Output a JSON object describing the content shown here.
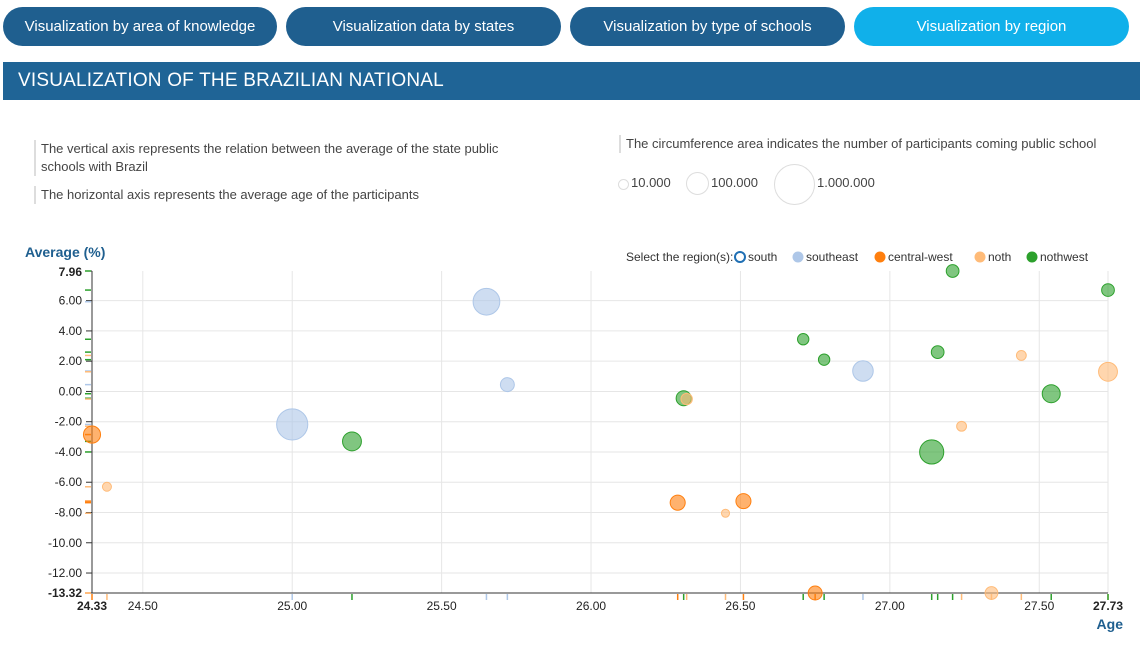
{
  "tabs": [
    {
      "label": "Visualization by area of knowledge",
      "active": false
    },
    {
      "label": "Visualization data by states",
      "active": false
    },
    {
      "label": "Visualization by type of schools",
      "active": false
    },
    {
      "label": "Visualization by region",
      "active": true
    }
  ],
  "banner": {
    "title": "VISUALIZATION OF THE BRAZILIAN NATIONAL"
  },
  "notes": {
    "vertical": "The vertical axis represents the relation between the average of the state public schools with Brazil",
    "horizontal": "The horizontal axis represents the average age of the participants",
    "circumference": "The circumference area indicates the number of participants coming public school"
  },
  "size_legend": [
    "10.000",
    "100.000",
    "1.000.000"
  ],
  "region_selector": {
    "label": "Select the region(s):",
    "regions": [
      {
        "name": "south",
        "color": "#1f6fb4",
        "selected": false
      },
      {
        "name": "southeast",
        "color": "#aec7e8",
        "selected": true
      },
      {
        "name": "central-west",
        "color": "#ff7f0e",
        "selected": true
      },
      {
        "name": "noth",
        "color": "#ffbb78",
        "selected": true
      },
      {
        "name": "nothwest",
        "color": "#2ca02c",
        "selected": true
      }
    ]
  },
  "chart_data": {
    "type": "scatter",
    "ylabel": "Average (%)",
    "xlabel": "Age",
    "xlim": [
      24.33,
      27.73
    ],
    "ylim": [
      -13.32,
      7.96
    ],
    "x_ticks": [
      "24.50",
      "25.00",
      "25.50",
      "26.00",
      "26.50",
      "27.00",
      "27.50"
    ],
    "x_min_label": "24.33",
    "x_max_label": "27.73",
    "y_ticks": [
      "6.00",
      "4.00",
      "2.00",
      "0.00",
      "-2.00",
      "-4.00",
      "-6.00",
      "-8.00",
      "-10.00",
      "-12.00"
    ],
    "y_max_label": "7.96",
    "y_min_label": "-13.32",
    "colors": {
      "southeast": "#aec7e8",
      "central-west": "#ff7f0e",
      "noth": "#ffbb78",
      "nothwest": "#2ca02c"
    },
    "points": [
      {
        "region": "southeast",
        "x": 25.65,
        "y": 5.93,
        "participants": 220000
      },
      {
        "region": "southeast",
        "x": 25.72,
        "y": 0.45,
        "participants": 60000
      },
      {
        "region": "southeast",
        "x": 25.0,
        "y": -2.18,
        "participants": 300000
      },
      {
        "region": "southeast",
        "x": 26.91,
        "y": 1.35,
        "participants": 130000
      },
      {
        "region": "central-west",
        "x": 24.33,
        "y": -2.85,
        "participants": 90000
      },
      {
        "region": "central-west",
        "x": 26.29,
        "y": -7.35,
        "participants": 70000
      },
      {
        "region": "central-west",
        "x": 26.51,
        "y": -7.25,
        "participants": 70000
      },
      {
        "region": "central-west",
        "x": 26.75,
        "y": -13.32,
        "participants": 60000
      },
      {
        "region": "noth",
        "x": 24.38,
        "y": -6.3,
        "participants": 25000
      },
      {
        "region": "noth",
        "x": 26.32,
        "y": -0.5,
        "participants": 40000
      },
      {
        "region": "noth",
        "x": 26.45,
        "y": -8.05,
        "participants": 20000
      },
      {
        "region": "noth",
        "x": 27.24,
        "y": -2.3,
        "participants": 30000
      },
      {
        "region": "noth",
        "x": 27.34,
        "y": -13.32,
        "participants": 50000
      },
      {
        "region": "noth",
        "x": 27.44,
        "y": 2.38,
        "participants": 30000
      },
      {
        "region": "noth",
        "x": 27.73,
        "y": 1.3,
        "participants": 110000
      },
      {
        "region": "nothwest",
        "x": 25.2,
        "y": -3.3,
        "participants": 110000
      },
      {
        "region": "nothwest",
        "x": 26.31,
        "y": -0.45,
        "participants": 70000
      },
      {
        "region": "nothwest",
        "x": 26.71,
        "y": 3.45,
        "participants": 40000
      },
      {
        "region": "nothwest",
        "x": 26.78,
        "y": 2.1,
        "participants": 40000
      },
      {
        "region": "nothwest",
        "x": 27.14,
        "y": -4.0,
        "participants": 180000
      },
      {
        "region": "nothwest",
        "x": 27.16,
        "y": 2.6,
        "participants": 50000
      },
      {
        "region": "nothwest",
        "x": 27.21,
        "y": 7.96,
        "participants": 50000
      },
      {
        "region": "nothwest",
        "x": 27.54,
        "y": -0.15,
        "participants": 100000
      },
      {
        "region": "nothwest",
        "x": 27.73,
        "y": 6.7,
        "participants": 50000
      }
    ]
  }
}
